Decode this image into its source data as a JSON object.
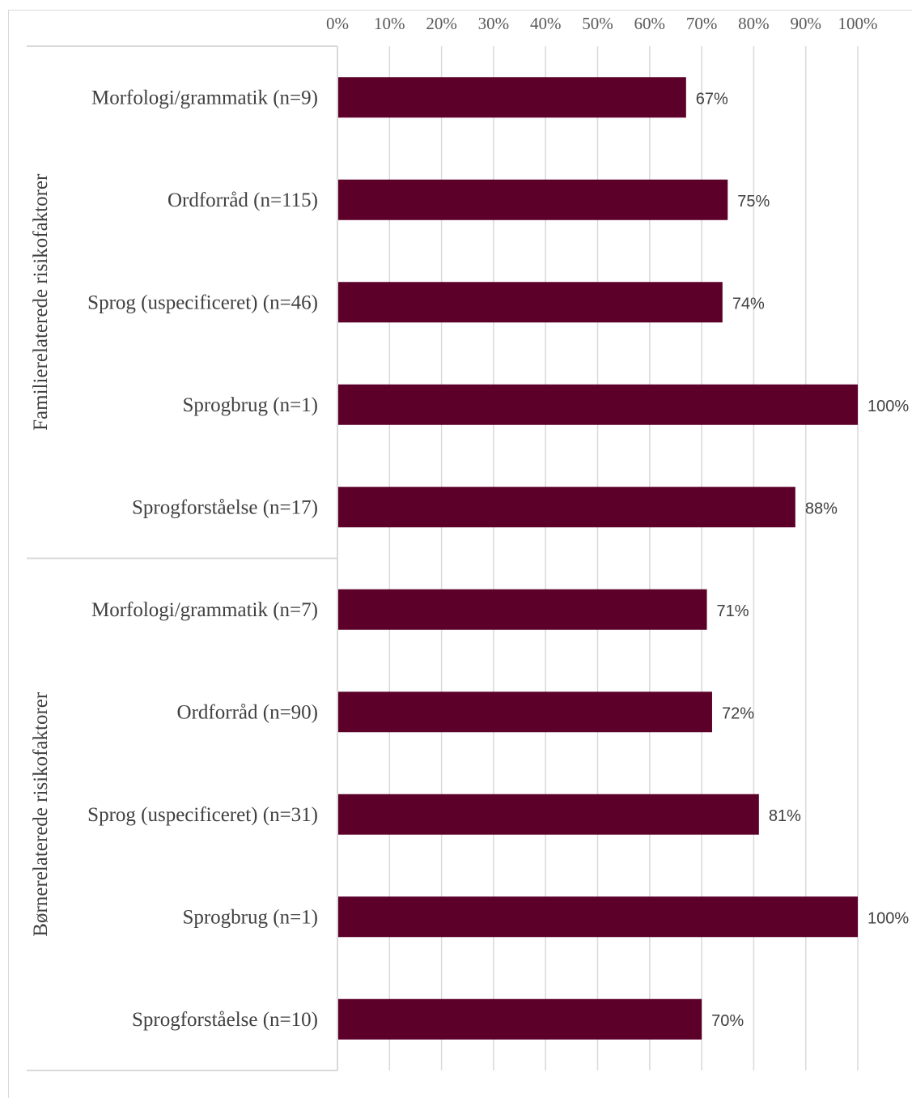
{
  "colors": {
    "bar": "#5c002a",
    "grid": "#d9d9d9",
    "text": "#404040"
  },
  "chart_data": {
    "type": "bar",
    "orientation": "horizontal",
    "title": "",
    "xlabel": "",
    "ylabel": "",
    "xlim": [
      0,
      100
    ],
    "x_ticks": [
      "0%",
      "10%",
      "20%",
      "30%",
      "40%",
      "50%",
      "60%",
      "70%",
      "80%",
      "90%",
      "100%"
    ],
    "x_axis_position": "top",
    "grid": true,
    "legend": "none",
    "groups": [
      {
        "label": "Familierelaterede risikofaktorer",
        "categories": [
          "Morfologi/grammatik (n=9)",
          "Ordforråd (n=115)",
          "Sprog (uspecificeret) (n=46)",
          "Sprogbrug (n=1)",
          "Sprogforståelse (n=17)"
        ],
        "values": [
          67,
          75,
          74,
          100,
          88
        ],
        "value_labels": [
          "67%",
          "75%",
          "74%",
          "100%",
          "88%"
        ]
      },
      {
        "label": "Børnerelaterede risikofaktorer",
        "categories": [
          "Morfologi/grammatik (n=7)",
          "Ordforråd (n=90)",
          "Sprog (uspecificeret) (n=31)",
          "Sprogbrug (n=1)",
          "Sprogforståelse (n=10)"
        ],
        "values": [
          71,
          72,
          81,
          100,
          70
        ],
        "value_labels": [
          "71%",
          "72%",
          "81%",
          "100%",
          "70%"
        ]
      }
    ]
  }
}
